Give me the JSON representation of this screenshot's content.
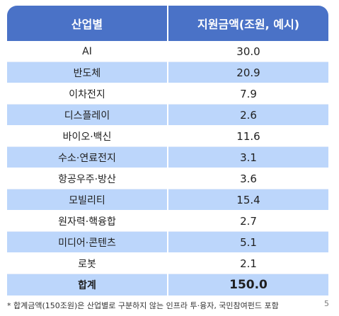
{
  "table": {
    "headers": [
      "산업별",
      "지원금액(조원, 예시)"
    ],
    "rows": [
      {
        "industry": "AI",
        "amount": "30.0"
      },
      {
        "industry": "반도체",
        "amount": "20.9"
      },
      {
        "industry": "이차전지",
        "amount": "7.9"
      },
      {
        "industry": "디스플레이",
        "amount": "2.6"
      },
      {
        "industry": "바이오·백신",
        "amount": "11.6"
      },
      {
        "industry": "수소·연료전지",
        "amount": "3.1"
      },
      {
        "industry": "항공우주·방산",
        "amount": "3.6"
      },
      {
        "industry": "모빌리티",
        "amount": "15.4"
      },
      {
        "industry": "원자력·핵융합",
        "amount": "2.7"
      },
      {
        "industry": "미디어·콘텐츠",
        "amount": "5.1"
      },
      {
        "industry": "로봇",
        "amount": "2.1"
      }
    ],
    "total": {
      "label": "합계",
      "amount": "150.0"
    }
  },
  "footnote": "* 합계금액(150조원)은 산업별로 구분하지 않는 인프라 투·융자, 국민참여펀드 포함",
  "page_number": "5"
}
